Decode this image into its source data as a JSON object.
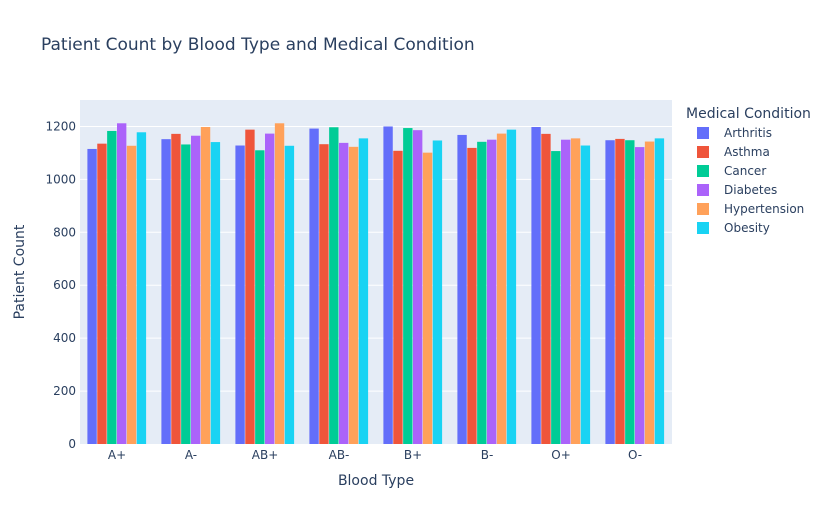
{
  "chart_data": {
    "type": "bar",
    "title": "Patient Count by Blood Type and Medical Condition",
    "xlabel": "Blood Type",
    "ylabel": "Patient Count",
    "ylim": [
      0,
      1300
    ],
    "yticks": [
      0,
      200,
      400,
      600,
      800,
      1000,
      1200
    ],
    "grid": true,
    "legend_title": "Medical Condition",
    "legend_position": "right",
    "categories": [
      "A+",
      "A-",
      "AB+",
      "AB-",
      "B+",
      "B-",
      "O+",
      "O-"
    ],
    "series": [
      {
        "name": "Arthritis",
        "color": "#636efa",
        "values": [
          1115,
          1152,
          1128,
          1192,
          1200,
          1168,
          1198,
          1148
        ]
      },
      {
        "name": "Asthma",
        "color": "#EF553B",
        "values": [
          1135,
          1172,
          1188,
          1133,
          1108,
          1119,
          1172,
          1153
        ]
      },
      {
        "name": "Cancer",
        "color": "#00cc96",
        "values": [
          1183,
          1132,
          1110,
          1197,
          1194,
          1142,
          1107,
          1148
        ]
      },
      {
        "name": "Diabetes",
        "color": "#ab63fa",
        "values": [
          1212,
          1165,
          1173,
          1138,
          1186,
          1150,
          1150,
          1122
        ]
      },
      {
        "name": "Hypertension",
        "color": "#FFA15A",
        "values": [
          1127,
          1198,
          1212,
          1123,
          1101,
          1173,
          1155,
          1143
        ]
      },
      {
        "name": "Obesity",
        "color": "#19d3f3",
        "values": [
          1178,
          1141,
          1127,
          1155,
          1147,
          1188,
          1128,
          1155
        ]
      }
    ]
  }
}
